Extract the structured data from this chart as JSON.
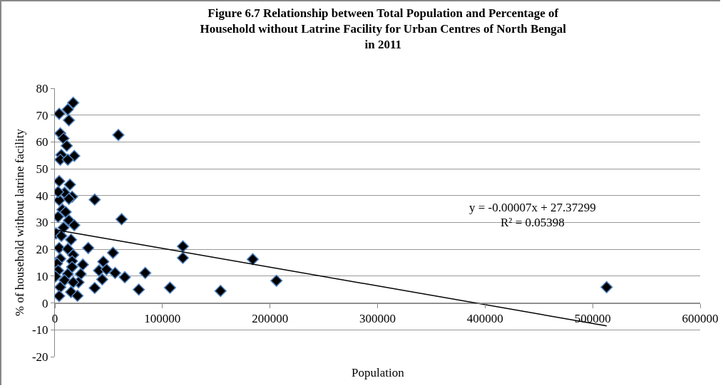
{
  "chart_data": {
    "type": "scatter",
    "title": "Figure 6.7 Relationship between Total Population and Percentage of Household without Latrine Facility for Urban Centres of North Bengal in 2011",
    "xlabel": "Population",
    "ylabel": "% of household without latrine facility",
    "annotations": [
      "y = -0.00007x + 27.37299",
      "R² = 0.05398"
    ],
    "xlim": [
      0,
      600000
    ],
    "xticks": [
      0,
      100000,
      200000,
      300000,
      400000,
      500000,
      600000
    ],
    "ylim": [
      -20,
      80
    ],
    "yticks": [
      -20,
      -10,
      0,
      10,
      20,
      30,
      40,
      50,
      60,
      70,
      80
    ],
    "grid": "y",
    "marker": "diamond",
    "series": [
      {
        "color": "#000000",
        "x": [
          17000,
          12000,
          4000,
          13000,
          59000,
          5000,
          8000,
          11000,
          6000,
          18000,
          5000,
          12000,
          4000,
          14000,
          9000,
          16000,
          4000,
          37000,
          3000,
          13000,
          7000,
          10000,
          62000,
          13000,
          3000,
          18000,
          8000,
          1000,
          6000,
          15000,
          31000,
          4000,
          12000,
          54000,
          5000,
          17000,
          16000,
          45000,
          26000,
          2000,
          41000,
          48000,
          56000,
          65000,
          84000,
          3000,
          12000,
          24000,
          500,
          9000,
          44000,
          22000,
          5000,
          37000,
          78000,
          107000,
          15000,
          4000,
          21000,
          16000,
          17000,
          119000,
          119000,
          154000,
          184000,
          206000,
          513000
        ],
        "values": [
          74.6,
          72.1,
          70.5,
          68.1,
          62.6,
          63.2,
          61.3,
          58.6,
          55.2,
          54.8,
          53.4,
          53.4,
          45.4,
          44.1,
          41.1,
          39.6,
          38.3,
          38.5,
          41.4,
          38.8,
          34.8,
          33.9,
          31.2,
          30.8,
          32.1,
          29,
          28.1,
          25.9,
          25,
          23.6,
          20.5,
          20.5,
          20.1,
          18.7,
          16.5,
          17.9,
          15.6,
          15.4,
          14.3,
          14.7,
          12.1,
          12.5,
          11.2,
          9.6,
          11.2,
          12.1,
          10.8,
          10.8,
          9.9,
          8.5,
          8.8,
          7.7,
          5.9,
          5.6,
          5,
          5.7,
          4.1,
          2.6,
          2.7,
          13.4,
          7.7,
          21.1,
          16.8,
          4.5,
          16.3,
          8.3,
          5.9
        ]
      },
      {
        "type": "line",
        "color": "#000000",
        "marker": "none",
        "x": [
          500,
          513000
        ],
        "values": [
          27.3,
          -8.5
        ]
      }
    ]
  }
}
